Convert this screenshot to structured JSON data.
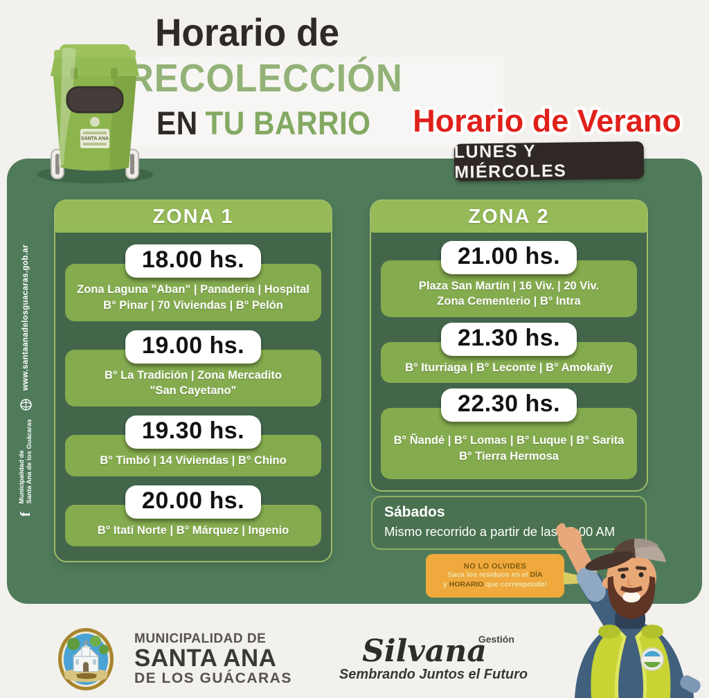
{
  "header": {
    "title_line1": "Horario de",
    "title_line2": "RECOLECCIÓN",
    "title_line3_dark": "EN",
    "title_line3_green": "TU BARRIO",
    "season_overlay": "Horario de Verano",
    "days_badge": "LUNES Y MIÉRCOLES",
    "bin_label": "SANTA ANA"
  },
  "zones": [
    {
      "name": "ZONA 1",
      "slots": [
        {
          "time": "18.00 hs.",
          "areas": [
            "Zona Laguna \"Aban\" | Panaderia | Hospital",
            "B° Pinar | 70 Viviendas | B° Pelón"
          ]
        },
        {
          "time": "19.00 hs.",
          "areas": [
            "B° La Tradición | Zona Mercadito",
            "\"San Cayetano\""
          ]
        },
        {
          "time": "19.30 hs.",
          "areas": [
            "B° Timbó | 14 Viviendas | B° Chino"
          ]
        },
        {
          "time": "20.00 hs.",
          "areas": [
            "B° Itatí Norte | B° Márquez | Ingenio"
          ]
        }
      ]
    },
    {
      "name": "ZONA 2",
      "slots": [
        {
          "time": "21.00 hs.",
          "areas": [
            "Plaza San Martín | 16 Viv. | 20 Viv.",
            "Zona Cementerio | B° Intra"
          ]
        },
        {
          "time": "21.30 hs.",
          "areas": [
            "B° Iturriaga | B° Leconte | B° Amokañy"
          ]
        },
        {
          "time": "22.30 hs.",
          "areas": [
            "B° Ñandé | B° Lomas | B° Luque | B° Sarita",
            "B° Tierra Hermosa"
          ]
        }
      ]
    }
  ],
  "saturday": {
    "title": "Sábados",
    "text": "Mismo recorrido a partir de las 06:00 AM"
  },
  "reminder": {
    "title": "NO LO OLVIDES",
    "l1a": "Saca los residuos en el ",
    "l1b": "DÍA",
    "l2a": "y ",
    "l2b": "HORARIO",
    "l2c": " que corresponde!"
  },
  "sidebar": {
    "facebook_icon": "f",
    "org_line1": "Municipalidad de",
    "org_line2": "Santa Ana de los Guácaras",
    "website": "www.santaanadelosguacaras.gob.ar"
  },
  "footer": {
    "muni_line1": "MUNICIPALIDAD DE",
    "muni_line2": "SANTA ANA",
    "muni_line3": "DE LOS GUÁCARAS",
    "gestion": "Gestión",
    "brand": "Silvana",
    "slogan": "Sembrando Juntos el Futuro"
  },
  "colors": {
    "background": "#f2f1ed",
    "panel_green": "#4f7b5b",
    "zone_body_green": "#43664b",
    "zone_header_green": "#95ba57",
    "areas_green": "#84ab4e",
    "badge_dark": "#2f2824",
    "season_red": "#e0201a",
    "bubble_yellow": "#efa93c"
  }
}
